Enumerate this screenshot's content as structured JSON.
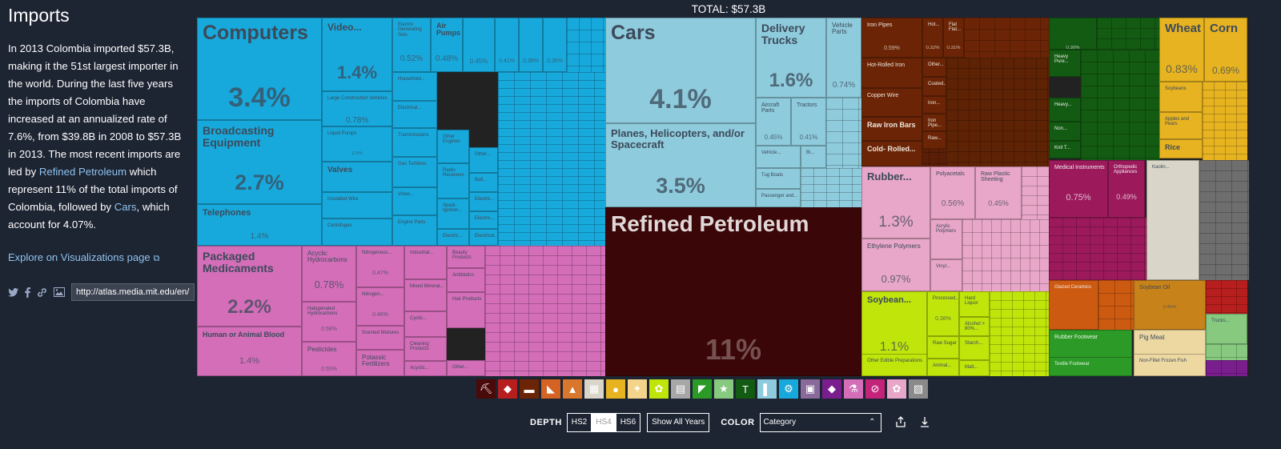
{
  "sidebar": {
    "title": "Imports",
    "desc_pre": "In 2013 Colombia imported $57.3B, making it the 51st largest importer in the world. During the last five years the imports of Colombia have increased at an annualized rate of 7.6%, from $39.8B in 2008 to $57.3B in 2013. The most recent imports are led by ",
    "desc_link1": "Refined Petroleum",
    "desc_mid": " which represent 11% of the total imports of Colombia, followed by ",
    "desc_link2": "Cars",
    "desc_post": ", which account for 4.07%.",
    "explore_label": "Explore on Visualizations page",
    "share_url": "http://atlas.media.mit.edu/en/"
  },
  "total_label": "TOTAL: $57.3B",
  "tiles": {
    "computers": {
      "name": "Computers",
      "pct": "3.4%",
      "color": "#18a9dc"
    },
    "video": {
      "name": "Video...",
      "pct": "1.4%",
      "color": "#18a9dc"
    },
    "electric_gen": {
      "name": "Electric Generating Sets",
      "pct": "0.52%",
      "color": "#18a9dc"
    },
    "air_pumps": {
      "name": "Air Pumps",
      "pct": "0.48%",
      "color": "#18a9dc"
    },
    "m1": {
      "name": "",
      "pct": "0.45%",
      "color": "#18a9dc"
    },
    "m2": {
      "name": "",
      "pct": "0.41%",
      "color": "#18a9dc"
    },
    "m3": {
      "name": "",
      "pct": "0.38%",
      "color": "#18a9dc"
    },
    "m4": {
      "name": "",
      "pct": "0.36%",
      "color": "#18a9dc"
    },
    "broadcasting": {
      "name": "Broadcasting Equipment",
      "pct": "2.7%",
      "color": "#18a9dc"
    },
    "telephones": {
      "name": "Telephones",
      "pct": "1.4%",
      "color": "#18a9dc"
    },
    "large_construction": {
      "name": "Large Construction Vehicles",
      "pct": "0.78%",
      "color": "#18a9dc"
    },
    "liquid_pumps": {
      "name": "Liquid Pumps",
      "pct": "1.0%",
      "color": "#18a9dc"
    },
    "valves": {
      "name": "Valves",
      "pct": "",
      "color": "#18a9dc"
    },
    "insulated_wire": {
      "name": "Insulated Wire",
      "pct": "",
      "color": "#18a9dc"
    },
    "centrifuges": {
      "name": "Centrifuges",
      "pct": "",
      "color": "#18a9dc"
    },
    "household": {
      "name": "Household...",
      "pct": "",
      "color": "#18a9dc"
    },
    "electrical": {
      "name": "Electrical...",
      "pct": "",
      "color": "#18a9dc"
    },
    "transmissions": {
      "name": "Transmissions",
      "pct": "",
      "color": "#18a9dc"
    },
    "gas_turbines": {
      "name": "Gas Turbines",
      "pct": "",
      "color": "#18a9dc"
    },
    "video2": {
      "name": "Video...",
      "pct": "",
      "color": "#18a9dc"
    },
    "engine_parts": {
      "name": "Engine Parts",
      "pct": "",
      "color": "#18a9dc"
    },
    "other_engines": {
      "name": "Other Engines",
      "pct": "",
      "color": "#18a9dc"
    },
    "radio_receivers": {
      "name": "Radio Receivers",
      "pct": "",
      "color": "#18a9dc"
    },
    "spark_ignition": {
      "name": "Spark-Ignition...",
      "pct": "",
      "color": "#18a9dc"
    },
    "electric_b": {
      "name": "Electric...",
      "pct": "",
      "color": "#18a9dc"
    },
    "other_b": {
      "name": "Other...",
      "pct": "",
      "color": "#18a9dc"
    },
    "ball_b": {
      "name": "Ball...",
      "pct": "",
      "color": "#18a9dc"
    },
    "electric_c": {
      "name": "Electric...",
      "pct": "",
      "color": "#18a9dc"
    },
    "electric_d": {
      "name": "Electric...",
      "pct": "",
      "color": "#18a9dc"
    },
    "electrical_e": {
      "name": "Electrical...",
      "pct": "",
      "color": "#18a9dc"
    },
    "cars": {
      "name": "Cars",
      "pct": "4.1%",
      "color": "#8ecbdc"
    },
    "delivery_trucks": {
      "name": "Delivery Trucks",
      "pct": "1.6%",
      "color": "#8ecbdc"
    },
    "vehicle_parts": {
      "name": "Vehicle Parts",
      "pct": "0.74%",
      "color": "#8ecbdc"
    },
    "planes": {
      "name": "Planes, Helicopters, and/or Spacecraft",
      "pct": "3.5%",
      "color": "#8ecbdc"
    },
    "aircraft_parts": {
      "name": "Aircraft Parts",
      "pct": "0.45%",
      "color": "#8ecbdc"
    },
    "tractors": {
      "name": "Tractors",
      "pct": "0.41%",
      "color": "#8ecbdc"
    },
    "vehicle_b": {
      "name": "Vehicle...",
      "pct": "",
      "color": "#8ecbdc"
    },
    "bi": {
      "name": "Bi...",
      "pct": "",
      "color": "#8ecbdc"
    },
    "tug_boats": {
      "name": "Tug Boats",
      "pct": "",
      "color": "#8ecbdc"
    },
    "passenger": {
      "name": "Passenger and...",
      "pct": "",
      "color": "#8ecbdc"
    },
    "refined_petroleum": {
      "name": "Refined Petroleum",
      "pct": "11%",
      "color": "#3b0608"
    },
    "packaged_medicaments": {
      "name": "Packaged Medicaments",
      "pct": "2.2%",
      "color": "#d46eb9"
    },
    "human_blood": {
      "name": "Human or Animal Blood",
      "pct": "1.4%",
      "color": "#d46eb9"
    },
    "acyclic_hydro": {
      "name": "Acyclic Hydrocarbons",
      "pct": "0.78%",
      "color": "#d46eb9"
    },
    "halogenated": {
      "name": "Halogenated Hydrocarbons",
      "pct": "0.58%",
      "color": "#d46eb9"
    },
    "pesticides": {
      "name": "Pesticides",
      "pct": "0.55%",
      "color": "#d46eb9"
    },
    "nitrogenous": {
      "name": "Nitrogenous...",
      "pct": "0.47%",
      "color": "#d46eb9"
    },
    "nitrogen": {
      "name": "Nitrogen...",
      "pct": "0.46%",
      "color": "#d46eb9"
    },
    "scented": {
      "name": "Scented Mixtures",
      "pct": "",
      "color": "#d46eb9"
    },
    "potassic": {
      "name": "Potassic Fertilizers",
      "pct": "",
      "color": "#d46eb9"
    },
    "industrial": {
      "name": "Industrial...",
      "pct": "",
      "color": "#d46eb9"
    },
    "mixed_mineral": {
      "name": "Mixed Mineral...",
      "pct": "",
      "color": "#d46eb9"
    },
    "cyclic": {
      "name": "Cyclic...",
      "pct": "",
      "color": "#d46eb9"
    },
    "cleaning": {
      "name": "Cleaning Products",
      "pct": "",
      "color": "#d46eb9"
    },
    "acyclic2": {
      "name": "Acyclic...",
      "pct": "",
      "color": "#d46eb9"
    },
    "beauty": {
      "name": "Beauty Products",
      "pct": "",
      "color": "#d46eb9"
    },
    "antibiotics": {
      "name": "Antibiotics",
      "pct": "",
      "color": "#d46eb9"
    },
    "hair_products": {
      "name": "Hair Products",
      "pct": "",
      "color": "#d46eb9"
    },
    "other_p": {
      "name": "Other...",
      "pct": "",
      "color": "#d46eb9"
    },
    "iron_pipes": {
      "name": "Iron Pipes",
      "pct": "0.59%",
      "color": "#6b2506"
    },
    "hot": {
      "name": "Hot...",
      "pct": "0.32%",
      "color": "#6b2506"
    },
    "flat_flat": {
      "name": "Flat Flat...",
      "pct": "0.31%",
      "color": "#6b2506"
    },
    "hot_rolled": {
      "name": "Hot-Rolled Iron",
      "pct": "",
      "color": "#6b2506"
    },
    "other_m": {
      "name": "Other...",
      "pct": "",
      "color": "#6b2506"
    },
    "coated": {
      "name": "Coated...",
      "pct": "",
      "color": "#6b2506"
    },
    "copper_wire": {
      "name": "Copper Wire",
      "pct": "",
      "color": "#6b2506"
    },
    "iron_b": {
      "name": "Iron...",
      "pct": "",
      "color": "#6b2506"
    },
    "raw_iron_bars": {
      "name": "Raw Iron Bars",
      "pct": "",
      "color": "#6b2506"
    },
    "iron_pipe2": {
      "name": "Iron Pipe...",
      "pct": "",
      "color": "#6b2506"
    },
    "cold_rolled": {
      "name": "Cold- Rolled...",
      "pct": "",
      "color": "#6b2506"
    },
    "raw_b": {
      "name": "Raw...",
      "pct": "",
      "color": "#6b2506"
    },
    "rubber": {
      "name": "Rubber...",
      "pct": "1.3%",
      "color": "#e8a6c8"
    },
    "polyacetals": {
      "name": "Polyacetals",
      "pct": "0.56%",
      "color": "#e8a6c8"
    },
    "raw_plastic": {
      "name": "Raw Plastic Sheeting",
      "pct": "0.45%",
      "color": "#e8a6c8"
    },
    "ethylene": {
      "name": "Ethylene Polymers",
      "pct": "0.97%",
      "color": "#e8a6c8"
    },
    "acrylic": {
      "name": "Acrylic Polymers",
      "pct": "",
      "color": "#e8a6c8"
    },
    "vinyl": {
      "name": "Vinyl...",
      "pct": "",
      "color": "#e8a6c8"
    },
    "soybean": {
      "name": "Soybean...",
      "pct": "1.1%",
      "color": "#bfe50b"
    },
    "other_edible": {
      "name": "Other Edible Preparations",
      "pct": "",
      "color": "#bfe50b"
    },
    "processed": {
      "name": "Processed...",
      "pct": "0.38%",
      "color": "#bfe50b"
    },
    "hard_liquor": {
      "name": "Hard Liquor",
      "pct": "",
      "color": "#bfe50b"
    },
    "alcohol": {
      "name": "Alcohol > 80%...",
      "pct": "",
      "color": "#bfe50b"
    },
    "raw_sugar": {
      "name": "Raw Sugar",
      "pct": "",
      "color": "#bfe50b"
    },
    "starch": {
      "name": "Starch...",
      "pct": "",
      "color": "#bfe50b"
    },
    "animal": {
      "name": "Animal...",
      "pct": "",
      "color": "#bfe50b"
    },
    "malt": {
      "name": "Malt...",
      "pct": "",
      "color": "#bfe50b"
    },
    "green_a": {
      "name": "",
      "pct": "0.30%",
      "color": "#135a12"
    },
    "heavy_pure": {
      "name": "Heavy Pure...",
      "pct": "",
      "color": "#135a12"
    },
    "heavy2": {
      "name": "Heavy...",
      "pct": "",
      "color": "#135a12"
    },
    "non": {
      "name": "Non...",
      "pct": "",
      "color": "#135a12"
    },
    "knit_t": {
      "name": "Knit T...",
      "pct": "",
      "color": "#135a12"
    },
    "wheat": {
      "name": "Wheat",
      "pct": "0.83%",
      "color": "#e7b320"
    },
    "corn": {
      "name": "Corn",
      "pct": "0.69%",
      "color": "#e7b320"
    },
    "soybeans": {
      "name": "Soybeans",
      "pct": "",
      "color": "#e7b320"
    },
    "apples": {
      "name": "Apples and Pears",
      "pct": "",
      "color": "#e7b320"
    },
    "rice": {
      "name": "Rice",
      "pct": "",
      "color": "#e7b320"
    },
    "medical": {
      "name": "Medical Instruments",
      "pct": "0.75%",
      "color": "#9c1a5c"
    },
    "orthopedic": {
      "name": "Orthopedic Appliances",
      "pct": "0.49%",
      "color": "#9c1a5c"
    },
    "kaolin": {
      "name": "Kaolin...",
      "pct": "",
      "color": "#d9d5c8"
    },
    "glazed": {
      "name": "Glazed Ceramics",
      "pct": "",
      "color": "#cd5a11"
    },
    "soybean_oil": {
      "name": "Soybean Oil",
      "pct": "0.45%",
      "color": "#c8821a"
    },
    "rubber_footwear": {
      "name": "Rubber Footwear",
      "pct": "",
      "color": "#2c9a26"
    },
    "textile_footwear": {
      "name": "Textile Footwear",
      "pct": "",
      "color": "#2c9a26"
    },
    "pig_meat": {
      "name": "Pig Meat",
      "pct": "",
      "color": "#edd8a2"
    },
    "non_fillet": {
      "name": "Non-Fillet Frozen Fish",
      "pct": "",
      "color": "#edd8a2"
    },
    "trucks": {
      "name": "Trucks...",
      "pct": "",
      "color": "#86c97f"
    }
  },
  "categories": [
    {
      "icon": "⛏",
      "color": "#4a0a0a"
    },
    {
      "icon": "◆",
      "color": "#b71e1e"
    },
    {
      "icon": "▬",
      "color": "#6b2506"
    },
    {
      "icon": "◣",
      "color": "#d56424"
    },
    {
      "icon": "▲",
      "color": "#d9772d"
    },
    {
      "icon": "▦",
      "color": "#d9d5c8"
    },
    {
      "icon": "●",
      "color": "#e7b320"
    },
    {
      "icon": "✦",
      "color": "#f3d48a"
    },
    {
      "icon": "✿",
      "color": "#bfe50b"
    },
    {
      "icon": "▤",
      "color": "#a7a7a7"
    },
    {
      "icon": "◤",
      "color": "#2c9a26"
    },
    {
      "icon": "★",
      "color": "#86c97f"
    },
    {
      "icon": "T",
      "color": "#135a12"
    },
    {
      "icon": "▌",
      "color": "#8ecbdc"
    },
    {
      "icon": "⚙",
      "color": "#18a9dc"
    },
    {
      "icon": "▣",
      "color": "#8a6a9c"
    },
    {
      "icon": "◆",
      "color": "#7a1e8e"
    },
    {
      "icon": "⚗",
      "color": "#d46eb9"
    },
    {
      "icon": "⊘",
      "color": "#c4237a"
    },
    {
      "icon": "✿",
      "color": "#e8a6c8"
    },
    {
      "icon": "▧",
      "color": "#8a8a8a"
    }
  ],
  "controls": {
    "depth_label": "DEPTH",
    "depth_options": [
      "HS2",
      "HS4",
      "HS6"
    ],
    "show_all_years": "Show All Years",
    "color_label": "COLOR",
    "color_value": "Category"
  }
}
